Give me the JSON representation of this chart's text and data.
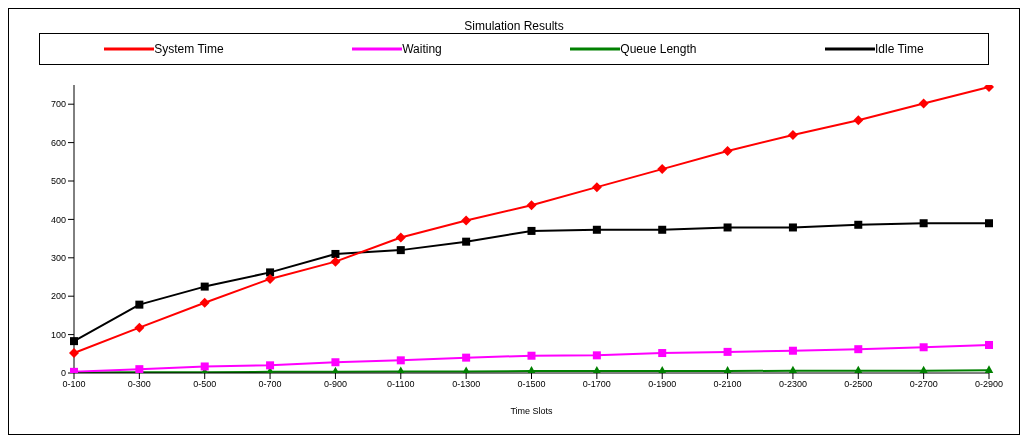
{
  "chart_data": {
    "type": "line",
    "title": "Simulation Results",
    "xlabel": "Time Slots",
    "categories": [
      "0-100",
      "0-300",
      "0-500",
      "0-700",
      "0-900",
      "0-1100",
      "0-1300",
      "0-1500",
      "0-1700",
      "0-1900",
      "0-2100",
      "0-2300",
      "0-2500",
      "0-2700",
      "0-2900"
    ],
    "series": [
      {
        "name": "System Time",
        "color": "#ff0000",
        "marker": "diamond",
        "values": [
          52,
          118,
          183,
          245,
          290,
          353,
          397,
          437,
          484,
          531,
          578,
          620,
          658,
          702,
          745
        ]
      },
      {
        "name": "Waiting",
        "color": "#ff00ff",
        "marker": "square",
        "values": [
          3,
          10,
          17,
          20,
          28,
          33,
          40,
          45,
          46,
          52,
          55,
          58,
          62,
          67,
          73
        ]
      },
      {
        "name": "Queue Length",
        "color": "#008000",
        "marker": "triangle",
        "values": [
          1,
          2,
          2,
          3,
          3,
          4,
          4,
          5,
          5,
          5,
          5,
          6,
          6,
          6,
          7
        ]
      },
      {
        "name": "Idle Time",
        "color": "#000000",
        "marker": "square",
        "values": [
          83,
          178,
          225,
          262,
          310,
          320,
          342,
          370,
          373,
          373,
          379,
          379,
          386,
          390,
          390
        ]
      }
    ],
    "ylim": [
      0,
      750
    ],
    "yticks": [
      0,
      100,
      200,
      300,
      400,
      500,
      600,
      700
    ],
    "grid": false,
    "legend": "top",
    "line_style": "solid"
  }
}
